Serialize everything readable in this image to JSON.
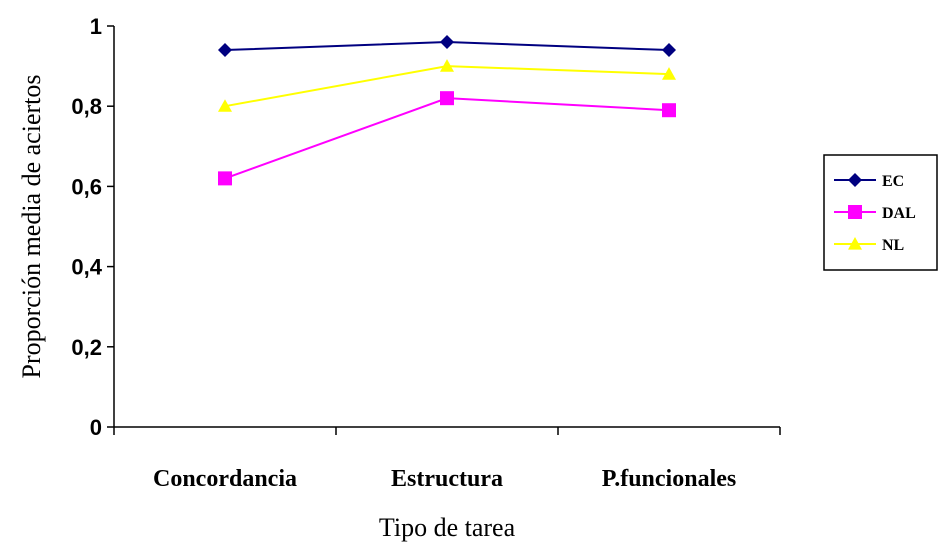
{
  "chart_data": {
    "type": "line",
    "title": "",
    "xlabel": "Tipo de tarea",
    "ylabel": "Proporción media de aciertos",
    "categories": [
      "Concordancia",
      "Estructura",
      "P.funcionales"
    ],
    "ylim": [
      0,
      1
    ],
    "yticks": [
      0,
      0.2,
      0.4,
      0.6,
      0.8,
      1
    ],
    "ytick_labels": [
      "0",
      "0,2",
      "0,4",
      "0,6",
      "0,8",
      "1"
    ],
    "grid": false,
    "legend_position": "right",
    "series": [
      {
        "name": "EC",
        "values": [
          0.94,
          0.96,
          0.94
        ],
        "color": "#000080",
        "marker": "diamond"
      },
      {
        "name": "DAL",
        "values": [
          0.62,
          0.82,
          0.79
        ],
        "color": "#FF00FF",
        "marker": "square"
      },
      {
        "name": "NL",
        "values": [
          0.8,
          0.9,
          0.88
        ],
        "color": "#FFFF00",
        "marker": "triangle"
      }
    ]
  }
}
